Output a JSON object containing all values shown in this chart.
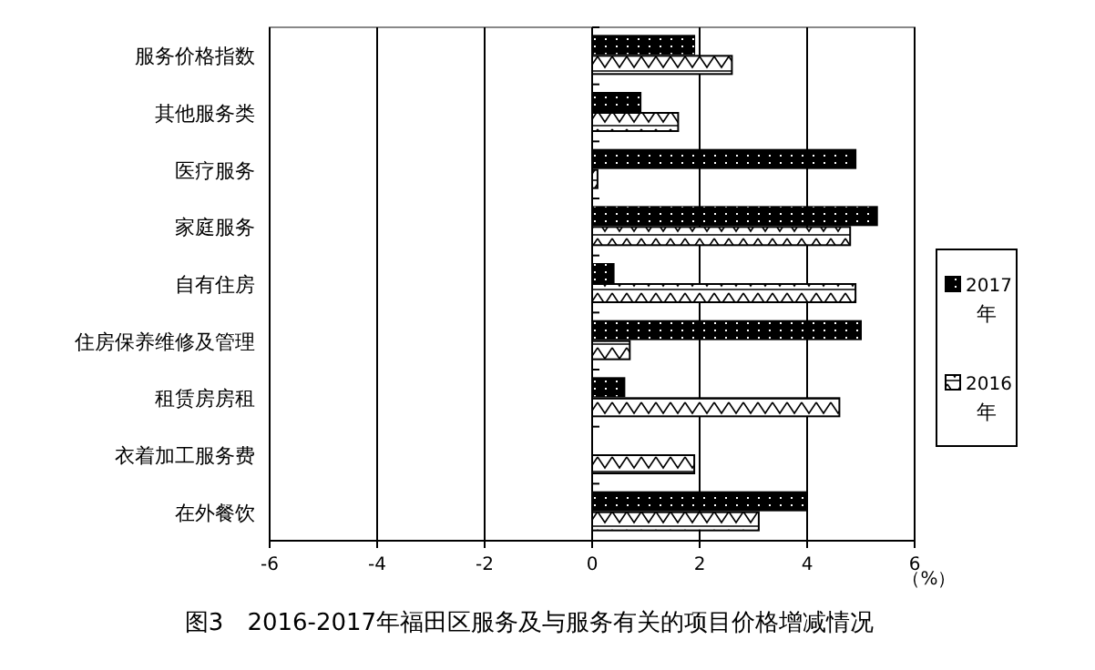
{
  "chart_data": {
    "type": "bar",
    "orientation": "horizontal",
    "title": "图3　2016-2017年福田区服务及与服务有关的项目价格增减情况",
    "xlabel": "（%）",
    "categories": [
      "服务价格指数",
      "其他服务类",
      "医疗服务",
      "家庭服务",
      "自有住房",
      "住房保养维修及管理",
      "租赁房房租",
      "衣着加工服务费",
      "在外餐饮"
    ],
    "series": [
      {
        "name": "2017年",
        "color": "#000000",
        "values": [
          1.9,
          0.9,
          4.9,
          5.3,
          0.4,
          5.0,
          0.6,
          null,
          4.0
        ]
      },
      {
        "name": "2016年",
        "color": "#ffffff",
        "values": [
          2.6,
          1.6,
          0.1,
          4.8,
          4.9,
          0.7,
          4.6,
          1.9,
          3.1
        ]
      }
    ],
    "xlim": [
      -6,
      6
    ],
    "xticks": [
      -6,
      -4,
      -2,
      0,
      2,
      4,
      6
    ],
    "grid": "x",
    "legend": "right"
  }
}
